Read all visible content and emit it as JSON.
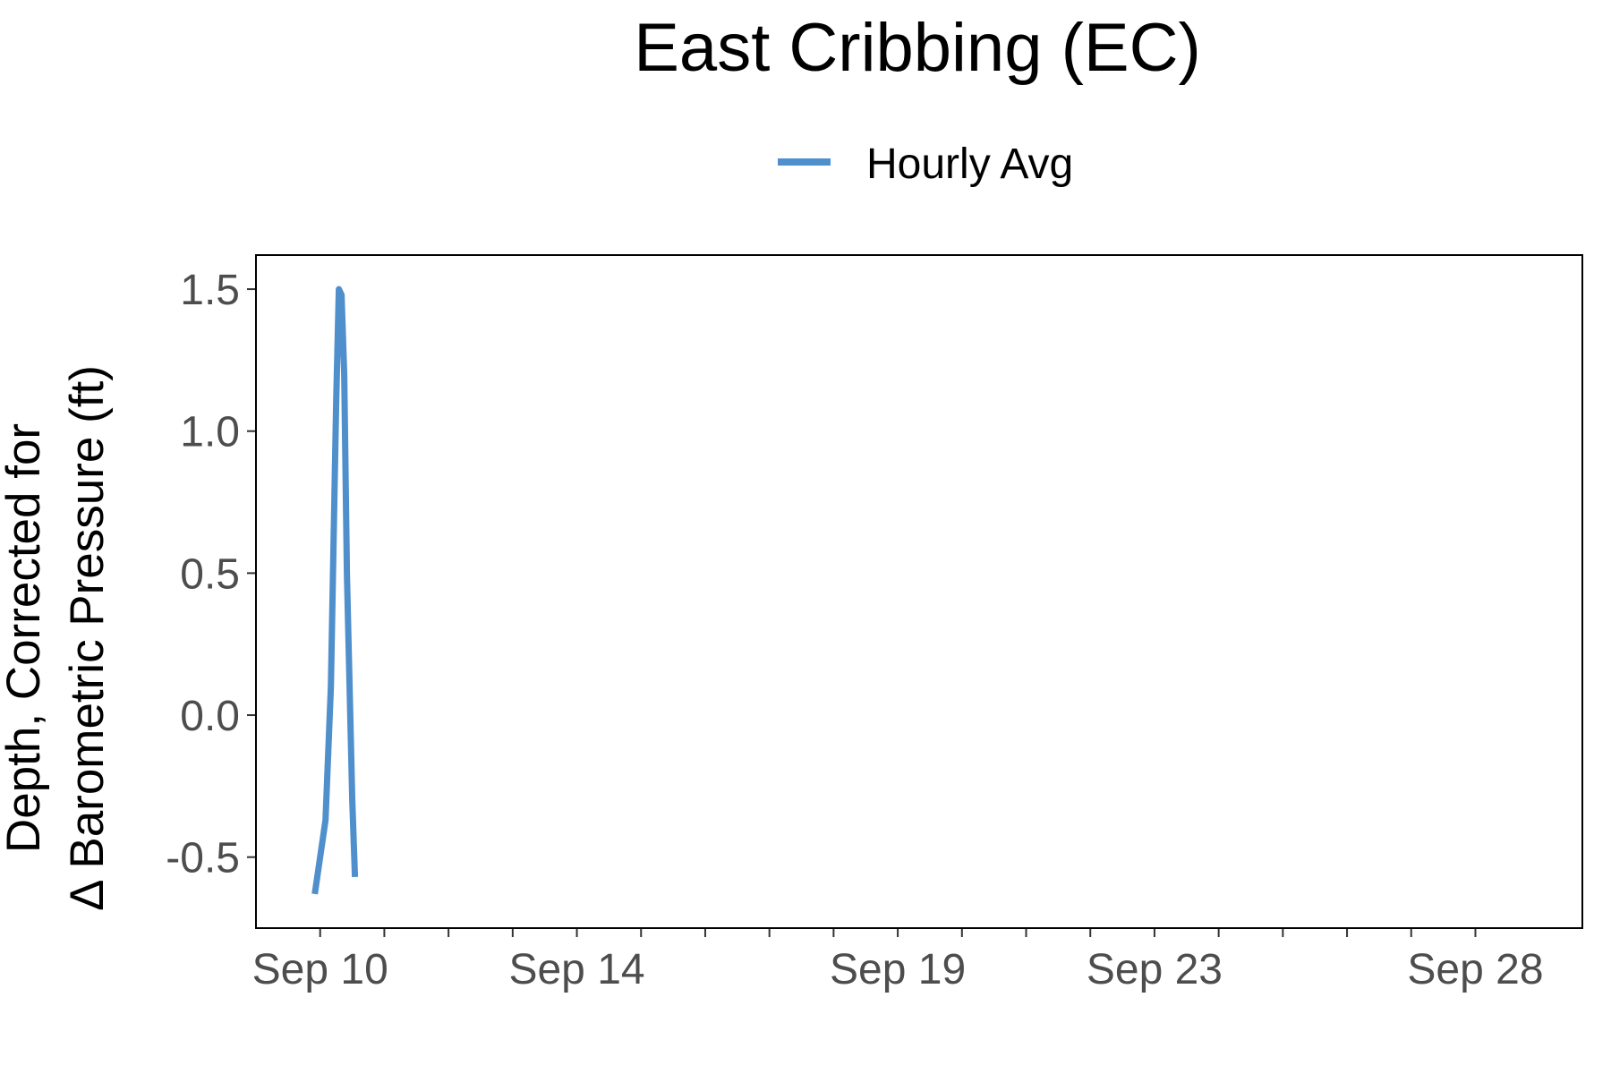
{
  "chart_data": {
    "type": "line",
    "title": "East Cribbing (EC)",
    "xlabel": "",
    "ylabel_lines": [
      "Depth, Corrected for",
      "Δ Barometric Pressure (ft)"
    ],
    "legend": {
      "placement": "top-center",
      "entries": [
        {
          "label": "Hourly Avg",
          "color": "#4f8fcc"
        }
      ]
    },
    "x_axis": {
      "type": "date",
      "range": [
        "2023-09-09T00:00",
        "2023-09-29T16:00"
      ],
      "tick_labels": [
        {
          "label": "Sep 10",
          "date": "2023-09-10T00:00"
        },
        {
          "label": "Sep 14",
          "date": "2023-09-14T00:00"
        },
        {
          "label": "Sep 19",
          "date": "2023-09-19T00:00"
        },
        {
          "label": "Sep 23",
          "date": "2023-09-23T00:00"
        },
        {
          "label": "Sep 28",
          "date": "2023-09-28T00:00"
        }
      ],
      "minor_ticks": [
        "2023-09-11T00:00",
        "2023-09-12T00:00",
        "2023-09-13T00:00",
        "2023-09-15T00:00",
        "2023-09-16T00:00",
        "2023-09-17T00:00",
        "2023-09-18T00:00",
        "2023-09-20T00:00",
        "2023-09-21T00:00",
        "2023-09-22T00:00",
        "2023-09-24T00:00",
        "2023-09-25T00:00",
        "2023-09-26T00:00",
        "2023-09-27T00:00"
      ]
    },
    "y_axis": {
      "range": [
        -0.75,
        1.62
      ],
      "ticks": [
        1.5,
        1.0,
        0.5,
        0.0,
        -0.5
      ],
      "tick_labels": [
        "1.5",
        "1.0",
        "0.5",
        "0.0",
        "-0.5"
      ]
    },
    "grid": false,
    "series": [
      {
        "name": "Hourly Avg",
        "color": "#4f8fcc",
        "points": [
          {
            "x": "2023-09-09T22:00",
            "y": -0.63
          },
          {
            "x": "2023-09-10T02:00",
            "y": -0.37
          },
          {
            "x": "2023-09-10T04:00",
            "y": 0.1
          },
          {
            "x": "2023-09-10T06:00",
            "y": 1.1
          },
          {
            "x": "2023-09-10T07:00",
            "y": 1.5
          },
          {
            "x": "2023-09-10T08:00",
            "y": 1.48
          },
          {
            "x": "2023-09-10T09:00",
            "y": 1.2
          },
          {
            "x": "2023-09-10T10:00",
            "y": 0.5
          },
          {
            "x": "2023-09-10T12:00",
            "y": -0.3
          },
          {
            "x": "2023-09-10T13:00",
            "y": -0.57
          }
        ]
      }
    ]
  }
}
